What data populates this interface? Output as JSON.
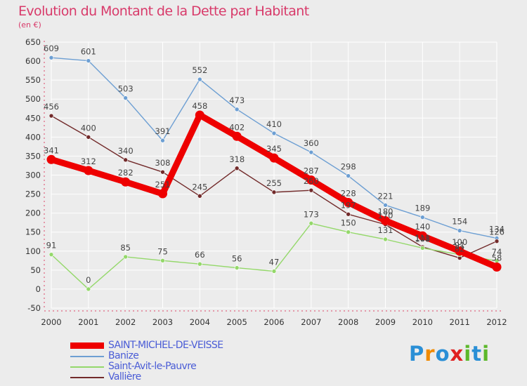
{
  "title": "Evolution du Montant de la Dette par Habitant",
  "unit": "(en €)",
  "logo": {
    "text": "Proxiti",
    "colors": [
      "#2a8fd6",
      "#f08a00",
      "#2a8fd6",
      "#e02020",
      "#5cb82a",
      "#2a8fd6",
      "#5cb82a"
    ]
  },
  "chart_data": {
    "type": "line",
    "x": [
      2000,
      2001,
      2002,
      2003,
      2004,
      2005,
      2006,
      2007,
      2008,
      2009,
      2010,
      2011,
      2012
    ],
    "ylim": [
      -50,
      650
    ],
    "yticks": [
      -50,
      0,
      50,
      100,
      150,
      200,
      250,
      300,
      350,
      400,
      450,
      500,
      550,
      600,
      650
    ],
    "grid": true,
    "series": [
      {
        "name": "SAINT-MICHEL-DE-VEISSE",
        "color": "#ee0000",
        "values": [
          341,
          312,
          282,
          251,
          458,
          402,
          345,
          287,
          228,
          180,
          140,
          100,
          58
        ]
      },
      {
        "name": "Banize",
        "color": "#6d9fd3",
        "values": [
          609,
          601,
          503,
          391,
          552,
          473,
          410,
          360,
          298,
          221,
          189,
          154,
          134
        ]
      },
      {
        "name": "Saint-Avit-le-Pauvre",
        "color": "#94d86a",
        "values": [
          91,
          0,
          85,
          75,
          66,
          56,
          47,
          173,
          150,
          131,
          108,
          91,
          74
        ]
      },
      {
        "name": "Vallière",
        "color": "#722a2a",
        "values": [
          456,
          400,
          340,
          308,
          245,
          318,
          255,
          260,
          197,
          170,
          111,
          82,
          126
        ]
      }
    ]
  }
}
